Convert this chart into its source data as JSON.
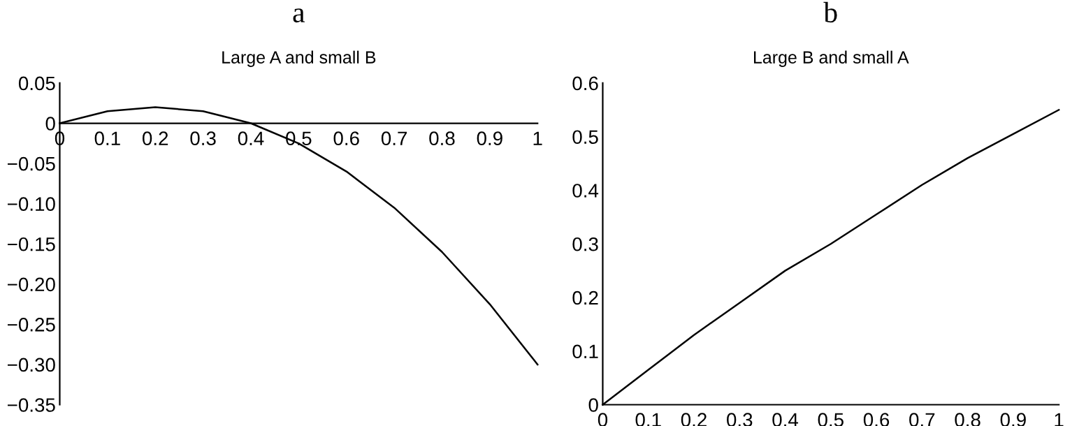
{
  "chart_data": [
    {
      "type": "line",
      "title": "a",
      "subtitle": "Large A and small B",
      "x": [
        0,
        0.1,
        0.2,
        0.3,
        0.4,
        0.5,
        0.6,
        0.7,
        0.8,
        0.9,
        1
      ],
      "series": [
        {
          "color": "#000000",
          "values": [
            0,
            0.015,
            0.02,
            0.015,
            0,
            -0.025,
            -0.06,
            -0.105,
            -0.16,
            -0.225,
            -0.3
          ]
        }
      ],
      "xlim": [
        0,
        1
      ],
      "ylim": [
        -0.35,
        0.05
      ],
      "xticks": [
        0,
        0.1,
        0.2,
        0.3,
        0.4,
        0.5,
        0.6,
        0.7,
        0.8,
        0.9,
        1
      ],
      "yticks": [
        0.05,
        0,
        {
          "value": -0.05,
          "label": "−0.05"
        },
        {
          "value": -0.1,
          "label": "−0.10"
        },
        {
          "value": -0.15,
          "label": "−0.15"
        },
        {
          "value": -0.2,
          "label": "−0.20"
        },
        {
          "value": -0.25,
          "label": "−0.25"
        },
        {
          "value": -0.3,
          "label": "−0.30"
        },
        {
          "value": -0.35,
          "label": "−0.35"
        }
      ],
      "marker": "none",
      "line_style": "solid"
    },
    {
      "type": "line",
      "title": "b",
      "subtitle": "Large B and small A",
      "x": [
        0,
        0.1,
        0.2,
        0.3,
        0.4,
        0.5,
        0.6,
        0.7,
        0.8,
        0.9,
        1
      ],
      "series": [
        {
          "color": "#000000",
          "values": [
            0,
            0.065,
            0.13,
            0.19,
            0.25,
            0.3,
            0.355,
            0.41,
            0.46,
            0.505,
            0.55
          ]
        }
      ],
      "xlim": [
        0,
        1
      ],
      "ylim": [
        0,
        0.6
      ],
      "xticks": [
        0,
        0.1,
        0.2,
        0.3,
        0.4,
        0.5,
        0.6,
        0.7,
        0.8,
        0.9,
        1
      ],
      "yticks": [
        0,
        0.1,
        0.2,
        0.3,
        0.4,
        0.5,
        0.6
      ],
      "marker": "none",
      "line_style": "solid"
    }
  ]
}
